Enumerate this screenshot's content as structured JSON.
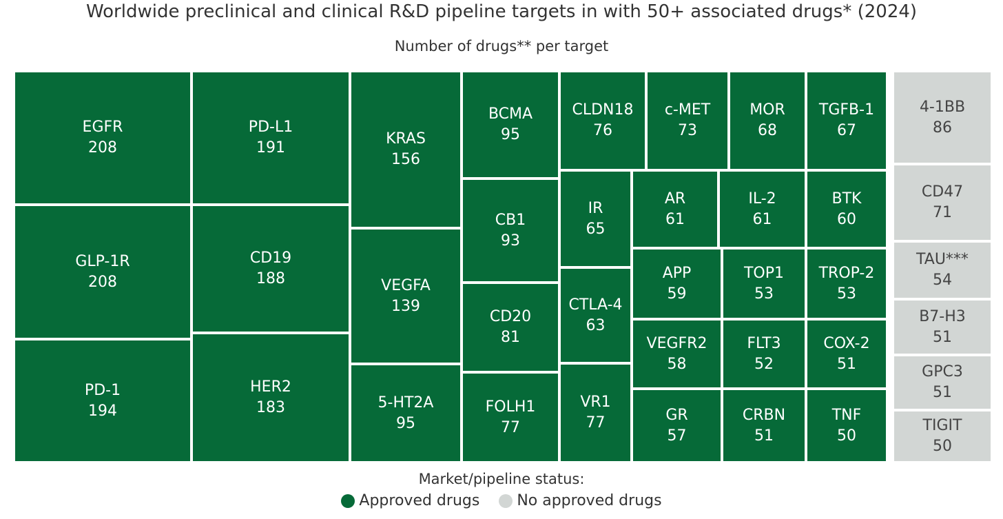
{
  "chart_data": {
    "type": "treemap",
    "title": "Worldwide preclinical and clinical R&D pipeline targets in with 50+ associated drugs* (2024)",
    "subtitle": "Number of drugs** per target",
    "legend_title": "Market/pipeline status:",
    "colors": {
      "approved": "#066a38",
      "unapproved": "#d2d6d4"
    },
    "series": [
      {
        "name": "Approved drugs",
        "items": [
          {
            "label": "EGFR",
            "value": 208
          },
          {
            "label": "GLP-1R",
            "value": 208
          },
          {
            "label": "PD-1",
            "value": 194
          },
          {
            "label": "PD-L1",
            "value": 191
          },
          {
            "label": "CD19",
            "value": 188
          },
          {
            "label": "HER2",
            "value": 183
          },
          {
            "label": "KRAS",
            "value": 156
          },
          {
            "label": "VEGFA",
            "value": 139
          },
          {
            "label": "5-HT2A",
            "value": 95
          },
          {
            "label": "BCMA",
            "value": 95
          },
          {
            "label": "CB1",
            "value": 93
          },
          {
            "label": "CD20",
            "value": 81
          },
          {
            "label": "FOLH1",
            "value": 77
          },
          {
            "label": "CLDN18",
            "value": 76
          },
          {
            "label": "c-MET",
            "value": 73
          },
          {
            "label": "MOR",
            "value": 68
          },
          {
            "label": "TGFB-1",
            "value": 67
          },
          {
            "label": "IR",
            "value": 65
          },
          {
            "label": "CTLA-4",
            "value": 63
          },
          {
            "label": "VR1",
            "value": 77
          },
          {
            "label": "AR",
            "value": 61
          },
          {
            "label": "IL-2",
            "value": 61
          },
          {
            "label": "BTK",
            "value": 60
          },
          {
            "label": "APP",
            "value": 59
          },
          {
            "label": "TOP1",
            "value": 53
          },
          {
            "label": "TROP-2",
            "value": 53
          },
          {
            "label": "VEGFR2",
            "value": 58
          },
          {
            "label": "FLT3",
            "value": 52
          },
          {
            "label": "COX-2",
            "value": 51
          },
          {
            "label": "GR",
            "value": 57
          },
          {
            "label": "CRBN",
            "value": 51
          },
          {
            "label": "TNF",
            "value": 50
          }
        ]
      },
      {
        "name": "No approved drugs",
        "items": [
          {
            "label": "4-1BB",
            "value": 86
          },
          {
            "label": "CD47",
            "value": 71
          },
          {
            "label": "TAU***",
            "value": 54
          },
          {
            "label": "B7-H3",
            "value": 51
          },
          {
            "label": "GPC3",
            "value": 51
          },
          {
            "label": "TIGIT",
            "value": 50
          }
        ]
      }
    ]
  }
}
